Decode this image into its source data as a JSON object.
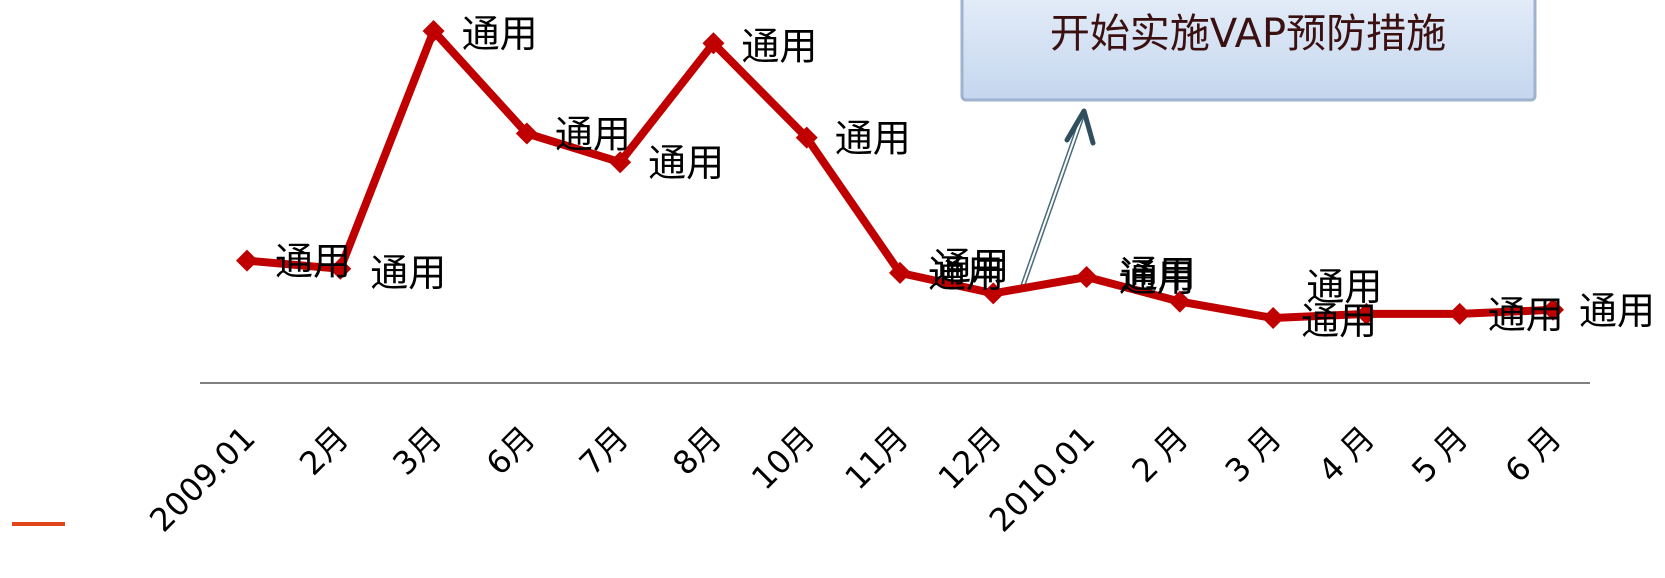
{
  "chart_data": {
    "type": "line",
    "title": "",
    "xlabel": "",
    "ylabel": "",
    "ylim": [
      0,
      100
    ],
    "categories": [
      "2009.01",
      "2月",
      "3月",
      "6月",
      "7月",
      "8月",
      "10月",
      "11月",
      "12月",
      "2010.01",
      "2 月",
      "3 月",
      "4 月",
      "5 月",
      "6 月"
    ],
    "series": [
      {
        "color": "#c00000",
        "values": [
          44,
          42,
          100,
          75,
          68,
          97,
          74,
          41,
          36,
          40,
          34,
          30,
          31,
          31,
          32
        ],
        "point_labels": [
          "通用",
          "通用",
          "通用",
          "通用",
          "通用",
          "通用",
          "通用",
          "通用",
          "通用",
          "通用",
          "通用",
          "通用",
          "通用",
          "通用",
          "通用"
        ]
      }
    ],
    "annotation": {
      "text": "开始实施VAP预防措施",
      "points_to_index": 8.5
    },
    "grid": false,
    "legend": "none"
  },
  "colors": {
    "line": "#c00000",
    "axis": "#808080",
    "callout_fill": "#c9daf0",
    "callout_border": "#9fb3cf",
    "callout_text": "#3a1010",
    "accent_dash": "#e0461a"
  }
}
